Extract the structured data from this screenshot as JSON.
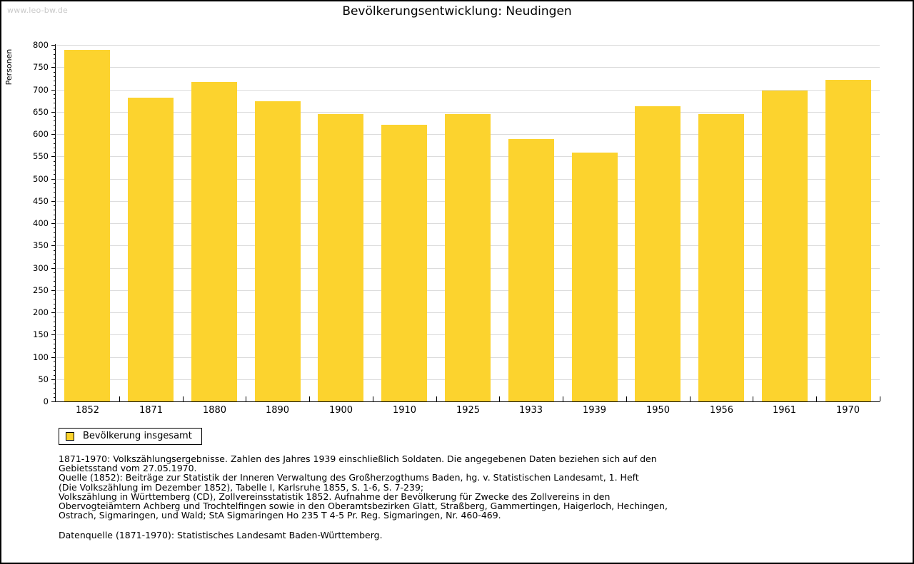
{
  "watermark": "www.leo-bw.de",
  "title": "Bevölkerungsentwicklung: Neudingen",
  "legend": {
    "label": "Bevölkerung insgesamt"
  },
  "colors": {
    "bar": "#fcd32e",
    "grid": "#dcdcdc",
    "axis": "#000000",
    "watermark": "#c9c9c9"
  },
  "chart_data": {
    "type": "bar",
    "title": "Bevölkerungsentwicklung: Neudingen",
    "xlabel": "",
    "ylabel": "Personen",
    "categories": [
      "1852",
      "1871",
      "1880",
      "1890",
      "1900",
      "1910",
      "1925",
      "1933",
      "1939",
      "1950",
      "1956",
      "1961",
      "1970"
    ],
    "values": [
      788,
      682,
      716,
      674,
      644,
      620,
      644,
      589,
      558,
      662,
      645,
      697,
      722
    ],
    "series_name": "Bevölkerung insgesamt",
    "ylim": [
      0,
      800
    ],
    "y_major_step": 50,
    "y_minor_step": 10,
    "grid": true,
    "legend_position": "bottom-left"
  },
  "footnotes": [
    "1871-1970: Volkszählungsergebnisse. Zahlen des Jahres 1939 einschließlich Soldaten. Die angegebenen Daten beziehen sich auf den",
    "Gebietsstand vom 27.05.1970.",
    "Quelle (1852): Beiträge zur Statistik der Inneren Verwaltung des Großherzogthums Baden, hg. v. Statistischen Landesamt, 1. Heft",
    "(Die Volkszählung im Dezember 1852), Tabelle I, Karlsruhe 1855, S. 1-6, S. 7-239;",
    "Volkszählung in Württemberg (CD), Zollvereinsstatistik 1852. Aufnahme der Bevölkerung für Zwecke des Zollvereins in den",
    "Obervogteiämtern Achberg und Trochtelfingen sowie in den Oberamtsbezirken Glatt, Straßberg, Gammertingen, Haigerloch, Hechingen,",
    "Ostrach, Sigmaringen, und Wald; StA Sigmaringen Ho 235 T 4-5 Pr. Reg. Sigmaringen, Nr. 460-469."
  ],
  "datasource": "Datenquelle (1871-1970): Statistisches Landesamt Baden-Württemberg."
}
